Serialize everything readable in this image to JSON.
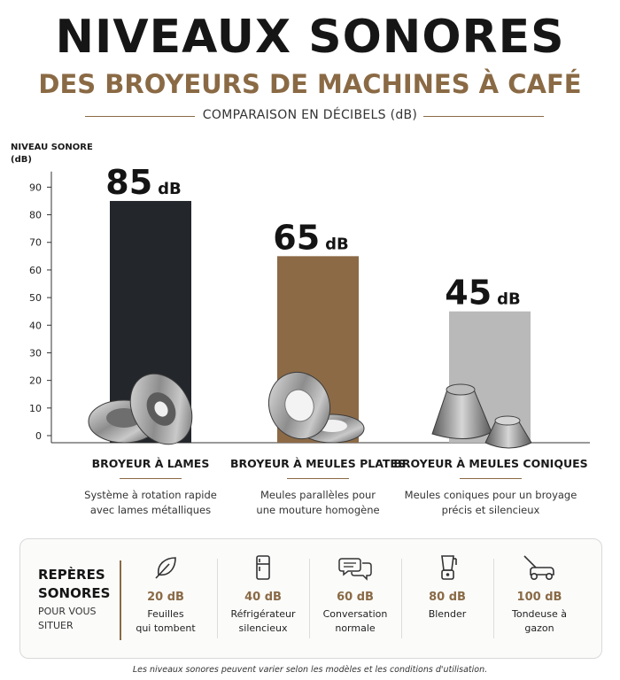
{
  "header": {
    "title": "NIVEAUX SONORES",
    "subtitle": "DES BROYEURS DE MACHINES À CAFÉ",
    "caption": "COMPARAISON EN DÉCIBELS (dB)"
  },
  "chart_data": {
    "type": "bar",
    "ylabel": "NIVEAU SONORE (dB)",
    "ylabel_lines": [
      "NIVEAU SONORE",
      "(dB)"
    ],
    "yticks": [
      0,
      10,
      20,
      30,
      40,
      50,
      60,
      70,
      80,
      90
    ],
    "ylim": [
      0,
      95
    ],
    "grid": false,
    "unit": "dB",
    "categories": [
      "BROYEUR À LAMES",
      "BROYEUR À MEULES PLATES",
      "BROYEUR À MEULES CONIQUES"
    ],
    "values": [
      85,
      65,
      45
    ],
    "value_labels": [
      "85",
      "65",
      "45"
    ],
    "colors": [
      "#23262b",
      "#8c6a46",
      "#b9b9b9"
    ],
    "descriptions": [
      [
        "Système à rotation rapide",
        "avec lames métalliques"
      ],
      [
        "Meules parallèles pour",
        "une mouture homogène"
      ],
      [
        "Meules coniques pour un broyage",
        "précis et silencieux"
      ]
    ],
    "illustrations": [
      "blade-grinder-icon",
      "flat-burr-icon",
      "conical-burr-icon"
    ]
  },
  "references": {
    "title_lines": [
      "REPÈRES",
      "SONORES"
    ],
    "subtitle_lines": [
      "POUR VOUS",
      "SITUER"
    ],
    "accent_color": "#8a6a45",
    "items": [
      {
        "icon": "leaf-icon",
        "db": "20 dB",
        "label_lines": [
          "Feuilles",
          "qui tombent"
        ]
      },
      {
        "icon": "fridge-icon",
        "db": "40 dB",
        "label_lines": [
          "Réfrigérateur",
          "silencieux"
        ]
      },
      {
        "icon": "speech-bubbles-icon",
        "db": "60 dB",
        "label_lines": [
          "Conversation",
          "normale"
        ]
      },
      {
        "icon": "blender-icon",
        "db": "80 dB",
        "label_lines": [
          "Blender"
        ]
      },
      {
        "icon": "lawnmower-icon",
        "db": "100 dB",
        "label_lines": [
          "Tondeuse à",
          "gazon"
        ]
      }
    ]
  },
  "footnote": "Les niveaux sonores peuvent varier selon les modèles et les conditions d'utilisation."
}
